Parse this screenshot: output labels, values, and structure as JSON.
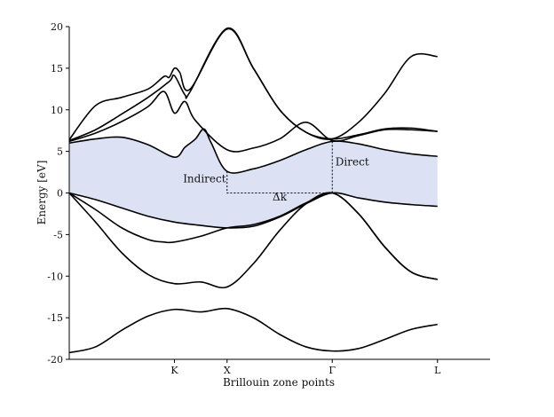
{
  "chart_data": {
    "type": "line",
    "title": "",
    "xlabel": "Brillouin zone points",
    "ylabel": "Energy [eV]",
    "xlim": [
      0,
      4
    ],
    "ylim": [
      -20,
      20
    ],
    "x_ticks": [
      {
        "pos": 1.0,
        "label": "K"
      },
      {
        "pos": 1.5,
        "label": "X"
      },
      {
        "pos": 2.5,
        "label": "Γ"
      },
      {
        "pos": 3.5,
        "label": "L"
      }
    ],
    "y_ticks": [
      -20,
      -15,
      -10,
      -5,
      0,
      5,
      10,
      15,
      20
    ],
    "band_fill_color": "#dce2f4",
    "line_color": "#000000",
    "bands": [
      {
        "x": [
          0,
          0.25,
          0.5,
          0.75,
          1.0,
          1.25,
          1.5,
          1.75,
          2.0,
          2.25,
          2.5,
          2.75,
          3.0,
          3.25,
          3.5
        ],
        "y": [
          -19.2,
          -18.5,
          -16.5,
          -14.8,
          -14.0,
          -14.3,
          -13.9,
          -15.0,
          -17.0,
          -18.5,
          -19.0,
          -18.7,
          -17.6,
          -16.4,
          -15.8
        ]
      },
      {
        "x": [
          0,
          0.25,
          0.5,
          0.75,
          1.0,
          1.25,
          1.5,
          1.75,
          2.0,
          2.25,
          2.5,
          2.75,
          3.0,
          3.25,
          3.5
        ],
        "y": [
          0.0,
          -3.5,
          -7.2,
          -9.8,
          -10.9,
          -10.7,
          -11.3,
          -8.5,
          -4.5,
          -1.3,
          0.0,
          -2.5,
          -6.5,
          -9.5,
          -10.4
        ]
      },
      {
        "x": [
          0,
          0.25,
          0.5,
          0.75,
          0.9,
          1.0,
          1.25,
          1.5,
          1.75,
          2.0,
          2.25,
          2.5,
          2.75,
          3.0,
          3.25,
          3.5
        ],
        "y": [
          0.0,
          -2.0,
          -4.2,
          -5.6,
          -5.9,
          -5.9,
          -5.2,
          -4.2,
          -3.8,
          -2.8,
          -1.2,
          0.0,
          -2.5,
          -6.5,
          -9.5,
          -10.4
        ]
      },
      {
        "x": [
          0,
          0.25,
          0.5,
          0.75,
          1.0,
          1.25,
          1.5,
          1.75,
          2.0,
          2.25,
          2.5,
          2.75,
          3.0,
          3.25,
          3.5
        ],
        "y": [
          0.0,
          -0.8,
          -1.8,
          -2.8,
          -3.5,
          -3.9,
          -4.2,
          -4.0,
          -2.9,
          -1.3,
          0.0,
          -0.6,
          -1.1,
          -1.4,
          -1.6
        ]
      },
      {
        "x": [
          0,
          0.25,
          0.5,
          0.75,
          1.0,
          1.1,
          1.2,
          1.28,
          1.35,
          1.5,
          1.75,
          2.0,
          2.25,
          2.5,
          2.75,
          3.0,
          3.25,
          3.5
        ],
        "y": [
          6.0,
          6.5,
          6.7,
          5.8,
          4.3,
          5.5,
          6.5,
          7.7,
          6.0,
          2.6,
          2.9,
          3.9,
          5.2,
          6.2,
          5.9,
          5.2,
          4.7,
          4.4
        ]
      },
      {
        "x": [
          0,
          0.25,
          0.5,
          0.75,
          0.9,
          1.0,
          1.1,
          1.2,
          1.5,
          1.75,
          2.0,
          2.25,
          2.5,
          2.75,
          3.0,
          3.25,
          3.5
        ],
        "y": [
          6.2,
          7.2,
          8.6,
          10.4,
          12.2,
          9.6,
          11.0,
          8.7,
          5.2,
          5.4,
          6.5,
          8.5,
          6.3,
          6.9,
          7.6,
          7.6,
          7.4
        ]
      },
      {
        "x": [
          0,
          0.25,
          0.5,
          0.75,
          0.95,
          1.0,
          1.1,
          1.15,
          1.5,
          1.75,
          2.0,
          2.25,
          2.5,
          2.75,
          3.0,
          3.25,
          3.5
        ],
        "y": [
          6.3,
          7.6,
          9.5,
          11.5,
          13.4,
          14.1,
          11.8,
          12.2,
          19.8,
          15.0,
          10.0,
          7.3,
          6.5,
          7.0,
          7.7,
          7.8,
          7.4
        ]
      },
      {
        "x": [
          0,
          0.25,
          0.5,
          0.75,
          0.9,
          0.95,
          1.0,
          1.05,
          1.15,
          1.5,
          1.75,
          2.0,
          2.25,
          2.5,
          2.75,
          3.0,
          3.25,
          3.5
        ],
        "y": [
          6.4,
          10.5,
          11.5,
          12.5,
          14.0,
          13.9,
          15.0,
          14.5,
          12.5,
          19.7,
          15.0,
          10.0,
          7.3,
          6.5,
          8.5,
          12.0,
          16.4,
          16.4
        ]
      }
    ],
    "gap_fill": {
      "x": [
        0,
        0.25,
        0.5,
        0.75,
        1.0,
        1.1,
        1.2,
        1.28,
        1.35,
        1.5,
        1.75,
        2.0,
        2.25,
        2.5,
        2.75,
        3.0,
        3.25,
        3.5
      ],
      "top": [
        6.0,
        6.5,
        6.7,
        5.8,
        4.3,
        5.5,
        6.5,
        7.7,
        6.0,
        2.6,
        2.9,
        3.9,
        5.2,
        6.2,
        5.9,
        5.2,
        4.7,
        4.4
      ],
      "bottom": [
        0.0,
        -0.8,
        -1.8,
        -2.8,
        -3.5,
        -3.65,
        -3.8,
        -3.9,
        -4.0,
        -4.2,
        -4.0,
        -2.9,
        -1.3,
        0.0,
        -0.6,
        -1.1,
        -1.4,
        -1.6
      ]
    },
    "annotations": [
      {
        "text": "Indirect",
        "x": 1.49,
        "y": 1.3,
        "anchor": "end"
      },
      {
        "text": "Direct",
        "x": 2.53,
        "y": 3.3,
        "anchor": "start"
      },
      {
        "text": "Δk",
        "x": 2.0,
        "y": -0.9,
        "anchor": "middle"
      }
    ],
    "indirect_gap": {
      "x_from": 1.5,
      "y_top": 2.6,
      "x_to": 2.5,
      "y_bottom": 0.0
    },
    "direct_gap": {
      "x": 2.5,
      "y_top": 6.2,
      "y_bottom": 0.0
    }
  }
}
